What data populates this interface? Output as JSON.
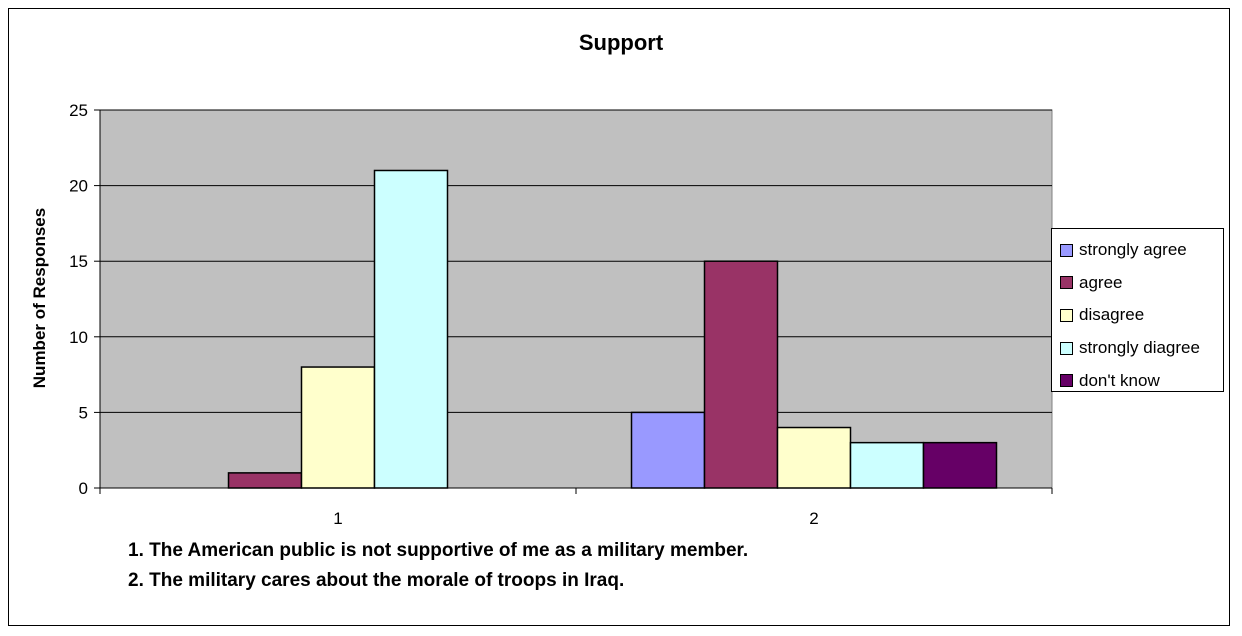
{
  "chart_data": {
    "type": "bar",
    "title": "Support",
    "xlabel": "",
    "ylabel": "Number of Responses",
    "categories": [
      "1",
      "2"
    ],
    "ylim": [
      0,
      25
    ],
    "yticks": [
      0,
      5,
      10,
      15,
      20,
      25
    ],
    "grid": true,
    "legend_position": "right",
    "series": [
      {
        "name": "strongly agree",
        "values": [
          0,
          5
        ],
        "color": "#9999ff"
      },
      {
        "name": "agree",
        "values": [
          1,
          15
        ],
        "color": "#993366"
      },
      {
        "name": "disagree",
        "values": [
          8,
          4
        ],
        "color": "#ffffcc"
      },
      {
        "name": "strongly diagree",
        "values": [
          21,
          3
        ],
        "color": "#ccffff"
      },
      {
        "name": "don't know",
        "values": [
          0,
          3
        ],
        "color": "#660066"
      }
    ],
    "notes": [
      "1. The American public is not supportive of me as a military member.",
      "2. The military cares about the morale of troops in Iraq."
    ],
    "plot_background": "#c0c0c0"
  }
}
